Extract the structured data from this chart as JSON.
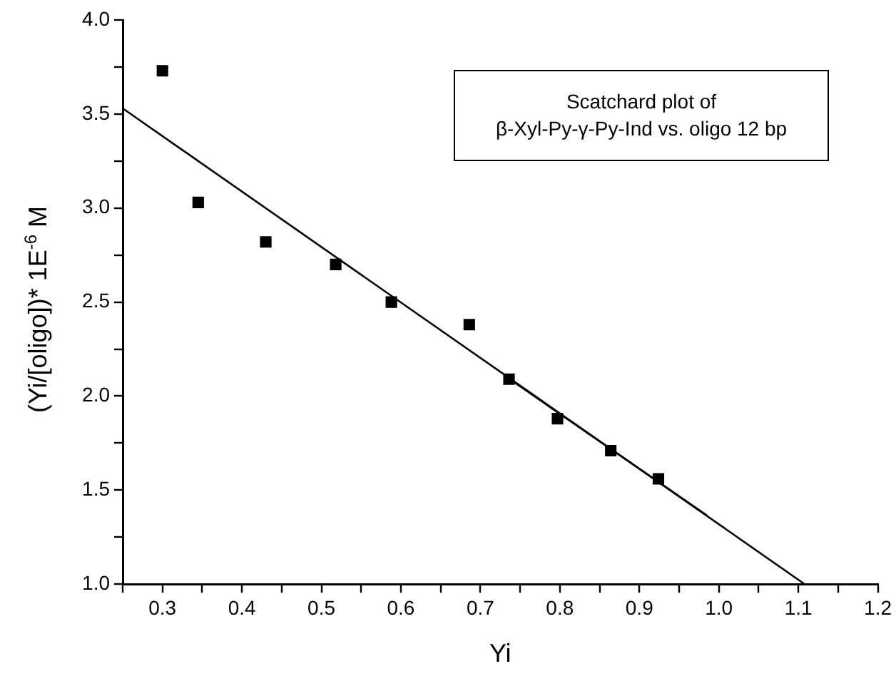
{
  "chart_data": {
    "type": "scatter",
    "xlabel": "Yi",
    "ylabel": "(Yi/[oligo])* 1E$^{-6}$ M",
    "annotations": [
      "Scatchard plot of",
      "β-Xyl-Py-γ-Py-Ind vs. oligo 12 bp"
    ],
    "series": [
      {
        "color": "#000000",
        "marker": "square",
        "x": [
          0.3,
          0.345,
          0.43,
          0.518,
          0.588,
          0.686,
          0.736,
          0.797,
          0.864,
          0.924
        ],
        "values": [
          3.73,
          3.03,
          2.82,
          2.7,
          2.5,
          2.38,
          2.09,
          1.88,
          1.71,
          1.56
        ]
      },
      {
        "type": "line",
        "color": "#000000",
        "marker": "none",
        "x": [
          0.25,
          1.108
        ],
        "values": [
          3.53,
          1.0
        ]
      },
      {
        "type": "line",
        "color": "#000000",
        "marker": "none",
        "x": [
          0.73,
          0.985
        ],
        "values": [
          2.11,
          1.365
        ]
      }
    ],
    "xlim": [
      0.25,
      1.2
    ],
    "xticks": [
      {
        "value": 0.25,
        "label": null
      },
      0.3,
      {
        "value": 0.35,
        "label": null
      },
      0.4,
      {
        "value": 0.45,
        "label": null
      },
      0.5,
      {
        "value": 0.55,
        "label": null
      },
      0.6,
      {
        "value": 0.65,
        "label": null
      },
      0.7,
      {
        "value": 0.75,
        "label": null
      },
      0.8,
      {
        "value": 0.85,
        "label": null
      },
      0.9,
      {
        "value": 0.95,
        "label": null
      },
      {
        "value": 1.0,
        "label": "1.0"
      },
      {
        "value": 1.05,
        "label": null
      },
      1.1,
      {
        "value": 1.15,
        "label": null
      },
      1.2
    ],
    "ylim": [
      1.0,
      4.0
    ],
    "yticks": [
      {
        "value": 1.0,
        "label": "1.0"
      },
      {
        "value": 1.25,
        "label": null
      },
      1.5,
      {
        "value": 1.75,
        "label": null
      },
      {
        "value": 2.0,
        "label": "2.0"
      },
      {
        "value": 2.25,
        "label": null
      },
      2.5,
      {
        "value": 2.75,
        "label": null
      },
      {
        "value": 3.0,
        "label": "3.0"
      },
      {
        "value": 3.25,
        "label": null
      },
      3.5,
      {
        "value": 3.75,
        "label": null
      },
      {
        "value": 4.0,
        "label": "4.0"
      }
    ],
    "grid": false,
    "legend": false
  }
}
